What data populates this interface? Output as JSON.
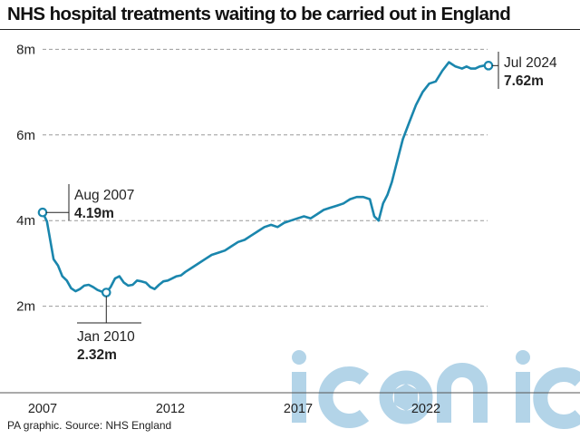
{
  "title": "NHS hospital treatments waiting to be carried out in England",
  "source": "PA graphic. Source: NHS England",
  "watermark": "iconic",
  "colors": {
    "line": "#1a86ad",
    "grid": "#999999",
    "watermark": "#b3d4e8"
  },
  "annotations": {
    "start": {
      "date": "Aug 2007",
      "value": "4.19m"
    },
    "low": {
      "date": "Jan 2010",
      "value": "2.32m"
    },
    "end": {
      "date": "Jul 2024",
      "value": "7.62m"
    }
  },
  "chart_data": {
    "type": "line",
    "title": "NHS hospital treatments waiting to be carried out in England",
    "xlabel": "",
    "ylabel": "",
    "x_ticks": [
      "2007",
      "2012",
      "2017",
      "2022"
    ],
    "y_ticks": [
      "2m",
      "4m",
      "6m",
      "8m"
    ],
    "ylim": [
      0,
      8
    ],
    "grid": "horizontal dashed",
    "series": [
      {
        "x": [
          "2007-08",
          "2007-10",
          "2008-01",
          "2008-03",
          "2008-05",
          "2008-07",
          "2008-09",
          "2008-11",
          "2009-01",
          "2009-03",
          "2009-05",
          "2009-07",
          "2009-09",
          "2009-11",
          "2010-01",
          "2010-03",
          "2010-05",
          "2010-07",
          "2010-09",
          "2010-11",
          "2011-01",
          "2011-03",
          "2011-05",
          "2011-07",
          "2011-09",
          "2011-11",
          "2012-01",
          "2012-03",
          "2012-05",
          "2012-07",
          "2012-09",
          "2012-11",
          "2013-01",
          "2013-04",
          "2013-07",
          "2013-10",
          "2014-01",
          "2014-04",
          "2014-07",
          "2014-10",
          "2015-01",
          "2015-04",
          "2015-07",
          "2015-10",
          "2016-01",
          "2016-04",
          "2016-07",
          "2016-10",
          "2017-01",
          "2017-04",
          "2017-07",
          "2017-10",
          "2018-01",
          "2018-04",
          "2018-07",
          "2018-10",
          "2019-01",
          "2019-04",
          "2019-07",
          "2019-10",
          "2020-01",
          "2020-03",
          "2020-05",
          "2020-07",
          "2020-09",
          "2020-11",
          "2021-01",
          "2021-04",
          "2021-07",
          "2021-10",
          "2022-01",
          "2022-04",
          "2022-07",
          "2022-10",
          "2023-01",
          "2023-04",
          "2023-07",
          "2023-09",
          "2023-11",
          "2024-01",
          "2024-03",
          "2024-05",
          "2024-07"
        ],
        "values": [
          4.19,
          3.98,
          3.1,
          2.95,
          2.7,
          2.6,
          2.42,
          2.35,
          2.4,
          2.48,
          2.5,
          2.45,
          2.38,
          2.34,
          2.32,
          2.45,
          2.65,
          2.7,
          2.55,
          2.48,
          2.5,
          2.6,
          2.58,
          2.55,
          2.45,
          2.4,
          2.5,
          2.58,
          2.6,
          2.65,
          2.7,
          2.72,
          2.8,
          2.9,
          3.0,
          3.1,
          3.2,
          3.25,
          3.3,
          3.4,
          3.5,
          3.55,
          3.65,
          3.75,
          3.85,
          3.9,
          3.85,
          3.95,
          4.0,
          4.05,
          4.1,
          4.05,
          4.15,
          4.25,
          4.3,
          4.35,
          4.4,
          4.5,
          4.55,
          4.55,
          4.5,
          4.1,
          4.0,
          4.4,
          4.6,
          4.9,
          5.3,
          5.9,
          6.3,
          6.7,
          7.0,
          7.2,
          7.25,
          7.5,
          7.7,
          7.6,
          7.55,
          7.6,
          7.55,
          7.55,
          7.6,
          7.62,
          7.62
        ]
      }
    ]
  }
}
